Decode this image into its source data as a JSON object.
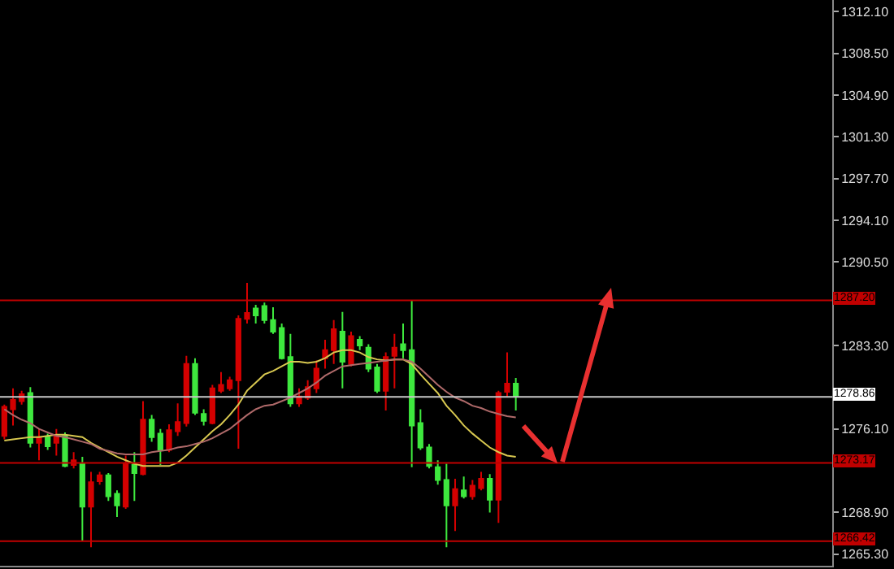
{
  "chart_data": {
    "type": "candlestick",
    "categories": [
      null,
      null,
      null,
      null,
      null,
      null,
      null,
      null,
      null,
      null,
      null,
      null,
      null,
      null,
      null,
      null,
      null,
      null,
      null,
      null,
      null,
      null,
      null,
      null,
      null,
      null,
      null,
      null,
      null,
      null,
      null,
      null,
      null,
      null,
      null,
      null,
      null,
      null,
      null,
      null,
      null,
      null,
      null,
      null,
      null,
      null,
      null,
      null,
      null,
      null,
      null,
      null,
      null,
      null,
      null,
      null,
      null,
      null,
      null,
      null,
      null,
      null,
      null,
      null,
      null,
      null,
      null,
      null,
      null,
      null,
      null,
      null,
      null,
      null,
      null,
      null,
      null,
      null,
      null,
      null,
      null,
      null,
      null,
      null,
      null,
      null,
      null,
      null,
      null,
      null,
      null,
      null,
      null,
      null,
      null,
      null
    ],
    "ohlc": [
      [
        1275.5,
        1278.2,
        1275.2,
        1278.0
      ],
      [
        1277.8,
        1279.6,
        1276.4,
        1278.6
      ],
      [
        1278.5,
        1279.4,
        1278.2,
        1279.1
      ],
      [
        1279.2,
        1279.7,
        1274.5,
        1274.9
      ],
      [
        1274.9,
        1276.1,
        1273.4,
        1275.4
      ],
      [
        1275.4,
        1275.7,
        1274.3,
        1274.6
      ],
      [
        1274.9,
        1276.1,
        1273.8,
        1275.5
      ],
      [
        1275.5,
        1275.8,
        1272.8,
        1272.9
      ],
      [
        1273.0,
        1274.1,
        1272.7,
        1273.4
      ],
      [
        1273.1,
        1273.7,
        1266.4,
        1269.4
      ],
      [
        1269.4,
        1272.4,
        1265.9,
        1271.5
      ],
      [
        1271.6,
        1272.4,
        1271.3,
        1272.1
      ],
      [
        1272.1,
        1272.3,
        1269.9,
        1270.3
      ],
      [
        1270.5,
        1270.8,
        1268.5,
        1269.5
      ],
      [
        1269.4,
        1273.8,
        1269.2,
        1273.1
      ],
      [
        1273.0,
        1274.1,
        1269.9,
        1272.3
      ],
      [
        1272.2,
        1278.5,
        1272.1,
        1276.9
      ],
      [
        1276.9,
        1277.3,
        1275.0,
        1275.4
      ],
      [
        1275.7,
        1276.1,
        1273.0,
        1274.3
      ],
      [
        1274.3,
        1276.5,
        1274.1,
        1276.0
      ],
      [
        1275.9,
        1278.3,
        1275.5,
        1276.7
      ],
      [
        1276.6,
        1282.4,
        1276.3,
        1281.7
      ],
      [
        1281.7,
        1282.2,
        1277.3,
        1277.5
      ],
      [
        1277.4,
        1277.8,
        1276.4,
        1276.8
      ],
      [
        1276.6,
        1279.9,
        1276.5,
        1279.6
      ],
      [
        1279.4,
        1281.0,
        1279.2,
        1279.9
      ],
      [
        1279.6,
        1280.6,
        1279.4,
        1280.3
      ],
      [
        1280.3,
        1285.9,
        1274.4,
        1285.6
      ],
      [
        1285.6,
        1288.7,
        1285.2,
        1286.1
      ],
      [
        1286.5,
        1286.8,
        1285.2,
        1285.9
      ],
      [
        1286.7,
        1287.0,
        1285.2,
        1285.5
      ],
      [
        1285.5,
        1286.6,
        1284.3,
        1284.5
      ],
      [
        1284.8,
        1285.2,
        1282.1,
        1282.2
      ],
      [
        1282.3,
        1284.3,
        1278.0,
        1278.3
      ],
      [
        1278.3,
        1279.6,
        1278.0,
        1278.9
      ],
      [
        1278.8,
        1280.3,
        1278.6,
        1279.7
      ],
      [
        1279.6,
        1282.0,
        1279.2,
        1281.3
      ],
      [
        1282.2,
        1283.8,
        1281.3,
        1282.9
      ],
      [
        1282.9,
        1285.5,
        1281.7,
        1284.7
      ],
      [
        1284.5,
        1286.2,
        1279.6,
        1281.9
      ],
      [
        1281.7,
        1284.5,
        1281.5,
        1284.1
      ],
      [
        1283.8,
        1284.1,
        1282.9,
        1283.3
      ],
      [
        1283.1,
        1283.4,
        1281.0,
        1281.3
      ],
      [
        1281.4,
        1281.7,
        1279.2,
        1279.4
      ],
      [
        1279.4,
        1282.7,
        1277.7,
        1282.3
      ],
      [
        1282.4,
        1284.3,
        1279.6,
        1283.1
      ],
      [
        1283.4,
        1285.2,
        1282.2,
        1282.9
      ],
      [
        1282.9,
        1287.2,
        1272.8,
        1276.4
      ],
      [
        1276.6,
        1277.8,
        1274.3,
        1274.5
      ],
      [
        1274.5,
        1274.8,
        1272.7,
        1272.9
      ],
      [
        1272.8,
        1273.4,
        1271.3,
        1271.7
      ],
      [
        1271.7,
        1273.1,
        1265.9,
        1269.5
      ],
      [
        1269.5,
        1271.8,
        1267.3,
        1270.9
      ],
      [
        1270.8,
        1272.0,
        1270.1,
        1270.3
      ],
      [
        1270.3,
        1271.7,
        1270.0,
        1271.2
      ],
      [
        1271.0,
        1272.4,
        1270.8,
        1271.8
      ],
      [
        1271.8,
        1272.2,
        1268.9,
        1270.0
      ],
      [
        1270.0,
        1279.4,
        1268.0,
        1279.2
      ],
      [
        1279.3,
        1282.7,
        1278.9,
        1280.0
      ],
      [
        1280.0,
        1280.5,
        1277.7,
        1278.9
      ],
      null,
      null,
      null,
      null,
      null,
      null,
      null,
      null,
      null,
      null,
      null,
      null,
      null,
      null,
      null,
      null,
      null,
      null,
      null,
      null,
      null,
      null,
      null,
      null,
      null,
      null,
      null,
      null,
      null,
      null,
      null,
      null,
      null,
      null,
      null,
      null
    ],
    "colors": [
      "#d40000",
      "#d40000",
      "#d40000",
      "#3ee83e",
      "#d40000",
      "#3ee83e",
      "#d40000",
      "#3ee83e",
      "#d40000",
      "#3ee83e",
      "#d40000",
      "#d40000",
      "#3ee83e",
      "#3ee83e",
      "#d40000",
      "#3ee83e",
      "#d40000",
      "#3ee83e",
      "#3ee83e",
      "#d40000",
      "#d40000",
      "#d40000",
      "#3ee83e",
      "#3ee83e",
      "#d40000",
      "#d40000",
      "#d40000",
      "#d40000",
      "#d40000",
      "#3ee83e",
      "#3ee83e",
      "#3ee83e",
      "#3ee83e",
      "#3ee83e",
      "#d40000",
      "#d40000",
      "#d40000",
      "#d40000",
      "#d40000",
      "#3ee83e",
      "#d40000",
      "#3ee83e",
      "#3ee83e",
      "#3ee83e",
      "#d40000",
      "#d40000",
      "#3ee83e",
      "#3ee83e",
      "#3ee83e",
      "#3ee83e",
      "#3ee83e",
      "#3ee83e",
      "#d40000",
      "#3ee83e",
      "#d40000",
      "#d40000",
      "#3ee83e",
      "#d40000",
      "#d40000",
      "#3ee83e",
      null,
      null,
      null,
      null,
      null,
      null,
      null,
      null,
      null,
      null,
      null,
      null,
      null,
      null,
      null,
      null,
      null,
      null,
      null,
      null,
      null,
      null,
      null,
      null,
      null,
      null,
      null,
      null,
      null,
      null,
      null,
      null,
      null,
      null,
      null,
      null
    ],
    "series": [
      {
        "type": "line",
        "color": "#d8c850",
        "values": [
          1275.1,
          1275.2,
          1275.3,
          1275.4,
          1275.4,
          1275.5,
          1275.6,
          1275.6,
          1275.5,
          1275.4,
          1274.9,
          1274.5,
          1274.1,
          1273.7,
          1273.4,
          1273.1,
          1272.9,
          1272.9,
          1272.9,
          1272.9,
          1273.2,
          1273.8,
          1274.5,
          1275.2,
          1275.9,
          1276.5,
          1277.3,
          1278.2,
          1279.4,
          1280.1,
          1280.8,
          1281.1,
          1281.5,
          1281.9,
          1281.9,
          1281.8,
          1281.9,
          1282.2,
          1282.7,
          1282.9,
          1282.9,
          1282.7,
          1282.3,
          1282.1,
          1282.0,
          1282.1,
          1282.1,
          1281.7,
          1280.8,
          1280.0,
          1279.2,
          1278.1,
          1277.3,
          1276.4,
          1275.7,
          1275.1,
          1274.5,
          1274.1,
          1273.8,
          1273.7,
          null,
          null,
          null,
          null,
          null,
          null,
          null,
          null,
          null,
          null,
          null,
          null,
          null,
          null,
          null,
          null,
          null,
          null,
          null,
          null,
          null,
          null,
          null,
          null,
          null,
          null,
          null,
          null,
          null,
          null,
          null,
          null,
          null,
          null,
          null,
          null
        ]
      },
      {
        "type": "line",
        "color": "#b06a6a",
        "values": [
          1277.8,
          1277.3,
          1276.9,
          1276.6,
          1276.1,
          1275.8,
          1275.5,
          1275.4,
          1275.2,
          1275.0,
          1274.8,
          1274.4,
          1274.2,
          1274.0,
          1273.9,
          1273.9,
          1273.9,
          1274.1,
          1274.2,
          1274.3,
          1274.5,
          1274.6,
          1274.8,
          1275.0,
          1275.3,
          1275.7,
          1276.1,
          1276.7,
          1277.3,
          1277.8,
          1278.1,
          1278.2,
          1278.5,
          1278.8,
          1279.2,
          1279.6,
          1280.1,
          1280.7,
          1281.1,
          1281.5,
          1281.6,
          1281.7,
          1281.8,
          1281.9,
          1282.0,
          1282.1,
          1282.1,
          1281.9,
          1281.3,
          1280.6,
          1279.9,
          1279.3,
          1278.8,
          1278.5,
          1278.1,
          1277.9,
          1277.6,
          1277.4,
          1277.2,
          1277.1,
          null,
          null,
          null,
          null,
          null,
          null,
          null,
          null,
          null,
          null,
          null,
          null,
          null,
          null,
          null,
          null,
          null,
          null,
          null,
          null,
          null,
          null,
          null,
          null,
          null,
          null,
          null,
          null,
          null,
          null,
          null,
          null,
          null,
          null,
          null,
          null
        ]
      }
    ],
    "ylim": [
      1264.3,
      1313.1
    ],
    "yticks": [
      {
        "value": 1312.1,
        "label": "1312.10"
      },
      {
        "value": 1308.5,
        "label": "1308.50"
      },
      {
        "value": 1304.9,
        "label": "1304.90"
      },
      {
        "value": 1301.3,
        "label": "1301.30"
      },
      {
        "value": 1297.7,
        "label": "1297.70"
      },
      {
        "value": 1294.1,
        "label": "1294.10"
      },
      {
        "value": 1290.5,
        "label": "1290.50"
      },
      {
        "value": 1283.3,
        "label": "1283.30"
      },
      {
        "value": 1276.1,
        "label": "1276.10"
      },
      {
        "value": 1268.9,
        "label": "1268.90"
      },
      {
        "value": 1265.3,
        "label": "1265.30"
      }
    ],
    "tick_labels": "y",
    "grid": false,
    "ref_lines": [
      {
        "axis": "y",
        "value": 1287.2,
        "label": "1287.20",
        "color": "#c00000"
      },
      {
        "axis": "y",
        "value": 1278.86,
        "label": "1278.86",
        "color": "#c8c8c8"
      },
      {
        "axis": "y",
        "value": 1273.17,
        "label": "1273.17",
        "color": "#c00000"
      },
      {
        "axis": "y",
        "value": 1266.42,
        "label": "1266.42",
        "color": "#c00000"
      }
    ]
  }
}
